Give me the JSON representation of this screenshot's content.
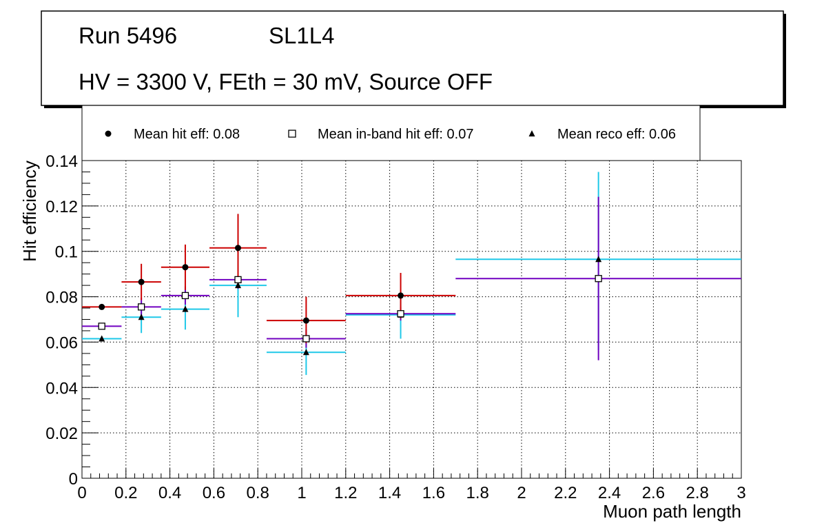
{
  "title_box": {
    "run": "Run 5496",
    "layer": "SL1L4",
    "conditions": "HV = 3300 V, FEth = 30 mV, Source OFF"
  },
  "chart_data": {
    "type": "scatter",
    "xlabel": "Muon path length",
    "ylabel": "Hit efficiency",
    "xlim": [
      0,
      3
    ],
    "ylim": [
      0,
      0.14
    ],
    "x_ticks": [
      "0",
      "0.2",
      "0.4",
      "0.6",
      "0.8",
      "1",
      "1.2",
      "1.4",
      "1.6",
      "1.8",
      "2",
      "2.2",
      "2.4",
      "2.6",
      "2.8",
      "3"
    ],
    "y_ticks": [
      "0",
      "0.02",
      "0.04",
      "0.06",
      "0.08",
      "0.1",
      "0.12",
      "0.14"
    ],
    "grid": true,
    "legend_position": "top",
    "series": [
      {
        "name": "Mean hit  eff: 0.08",
        "marker": "circle",
        "color": "#cc0000",
        "points": [
          {
            "x": 0.09,
            "xlo": 0.0,
            "xhi": 0.18,
            "y": 0.0755,
            "ylo": 0.0745,
            "yhi": 0.0765
          },
          {
            "x": 0.27,
            "xlo": 0.18,
            "xhi": 0.36,
            "y": 0.0865,
            "ylo": 0.0785,
            "yhi": 0.0945
          },
          {
            "x": 0.47,
            "xlo": 0.36,
            "xhi": 0.58,
            "y": 0.093,
            "ylo": 0.083,
            "yhi": 0.103
          },
          {
            "x": 0.71,
            "xlo": 0.58,
            "xhi": 0.84,
            "y": 0.1015,
            "ylo": 0.0865,
            "yhi": 0.1165
          },
          {
            "x": 1.02,
            "xlo": 0.84,
            "xhi": 1.2,
            "y": 0.0695,
            "ylo": 0.0595,
            "yhi": 0.08
          },
          {
            "x": 1.45,
            "xlo": 1.2,
            "xhi": 1.7,
            "y": 0.0805,
            "ylo": 0.0705,
            "yhi": 0.0905
          }
        ]
      },
      {
        "name": "Mean in-band hit eff: 0.07",
        "marker": "open-square",
        "color": "#7000c0",
        "points": [
          {
            "x": 0.09,
            "xlo": 0.0,
            "xhi": 0.18,
            "y": 0.067,
            "ylo": 0.066,
            "yhi": 0.068
          },
          {
            "x": 0.27,
            "xlo": 0.18,
            "xhi": 0.36,
            "y": 0.0755,
            "ylo": 0.0715,
            "yhi": 0.0795
          },
          {
            "x": 0.47,
            "xlo": 0.36,
            "xhi": 0.58,
            "y": 0.0805,
            "ylo": 0.0765,
            "yhi": 0.0845
          },
          {
            "x": 0.71,
            "xlo": 0.58,
            "xhi": 0.84,
            "y": 0.0875,
            "ylo": 0.0835,
            "yhi": 0.0915
          },
          {
            "x": 1.02,
            "xlo": 0.84,
            "xhi": 1.2,
            "y": 0.0615,
            "ylo": 0.0575,
            "yhi": 0.0655
          },
          {
            "x": 1.45,
            "xlo": 1.2,
            "xhi": 1.7,
            "y": 0.0725,
            "ylo": 0.0695,
            "yhi": 0.0755
          },
          {
            "x": 2.35,
            "xlo": 1.7,
            "xhi": 3.0,
            "y": 0.088,
            "ylo": 0.052,
            "yhi": 0.124
          }
        ]
      },
      {
        "name": "Mean reco eff: 0.06",
        "marker": "triangle",
        "color": "#1ec8e8",
        "points": [
          {
            "x": 0.09,
            "xlo": 0.0,
            "xhi": 0.18,
            "y": 0.0615,
            "ylo": 0.0605,
            "yhi": 0.0625
          },
          {
            "x": 0.27,
            "xlo": 0.18,
            "xhi": 0.36,
            "y": 0.071,
            "ylo": 0.064,
            "yhi": 0.078
          },
          {
            "x": 0.47,
            "xlo": 0.36,
            "xhi": 0.58,
            "y": 0.0745,
            "ylo": 0.0655,
            "yhi": 0.0835
          },
          {
            "x": 0.71,
            "xlo": 0.58,
            "xhi": 0.84,
            "y": 0.085,
            "ylo": 0.071,
            "yhi": 0.099
          },
          {
            "x": 1.02,
            "xlo": 0.84,
            "xhi": 1.2,
            "y": 0.0555,
            "ylo": 0.0455,
            "yhi": 0.0655
          },
          {
            "x": 1.45,
            "xlo": 1.2,
            "xhi": 1.7,
            "y": 0.072,
            "ylo": 0.0615,
            "yhi": 0.0825
          },
          {
            "x": 2.35,
            "xlo": 1.7,
            "xhi": 3.0,
            "y": 0.0965,
            "ylo": 0.0565,
            "yhi": 0.135
          }
        ]
      }
    ]
  }
}
